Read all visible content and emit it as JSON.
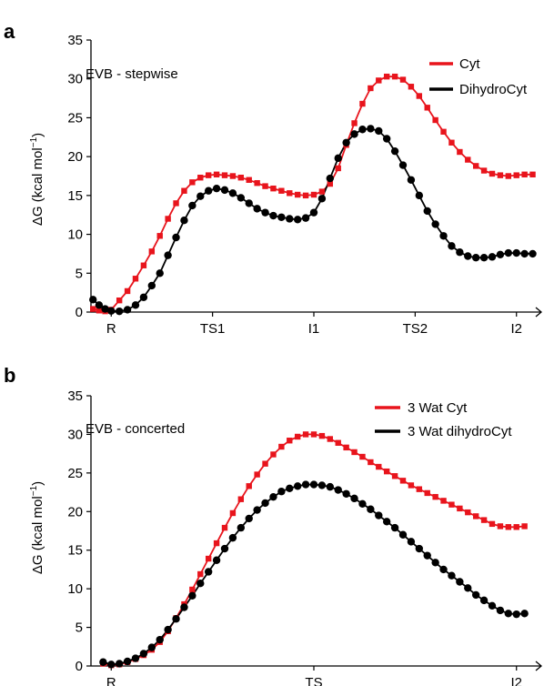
{
  "panels": [
    {
      "label": "a",
      "annotation": "EVB - stepwise"
    },
    {
      "label": "b",
      "annotation": "EVB - concerted"
    }
  ],
  "ylabel_text": "ΔG (kcal mol",
  "ylabel_sup": "−1",
  "ylabel_close": ")",
  "colors": {
    "red": "#e8141c",
    "black": "#000000"
  },
  "chart_data": [
    {
      "type": "line",
      "title": "",
      "annotation": "EVB - stepwise",
      "xlabel": "",
      "ylabel": "ΔG (kcal mol−1)",
      "ylim": [
        0,
        35
      ],
      "yticks": [
        0,
        5,
        10,
        15,
        20,
        25,
        30,
        35
      ],
      "xlim": [
        -0.5,
        10.5
      ],
      "xticks": [
        {
          "x": 0,
          "label": "R"
        },
        {
          "x": 2.5,
          "label": "TS1"
        },
        {
          "x": 5,
          "label": "I1"
        },
        {
          "x": 7.5,
          "label": "TS2"
        },
        {
          "x": 10,
          "label": "I2"
        }
      ],
      "legend_position": "top-right",
      "grid": false,
      "series": [
        {
          "name": "Cyt",
          "color": "#e8141c",
          "marker": "square",
          "x": [
            -0.45,
            -0.3,
            -0.15,
            0,
            0.2,
            0.4,
            0.6,
            0.8,
            1.0,
            1.2,
            1.4,
            1.6,
            1.8,
            2.0,
            2.2,
            2.4,
            2.6,
            2.8,
            3.0,
            3.2,
            3.4,
            3.6,
            3.8,
            4.0,
            4.2,
            4.4,
            4.6,
            4.8,
            5.0,
            5.2,
            5.4,
            5.6,
            5.8,
            6.0,
            6.2,
            6.4,
            6.6,
            6.8,
            7.0,
            7.2,
            7.4,
            7.6,
            7.8,
            8.0,
            8.2,
            8.4,
            8.6,
            8.8,
            9.0,
            9.2,
            9.4,
            9.6,
            9.8,
            10.0,
            10.2,
            10.4
          ],
          "y": [
            0.4,
            0.2,
            0.1,
            0.3,
            1.5,
            2.7,
            4.3,
            6.0,
            7.8,
            9.8,
            12.0,
            14.0,
            15.6,
            16.7,
            17.3,
            17.6,
            17.7,
            17.6,
            17.5,
            17.3,
            17.0,
            16.6,
            16.2,
            15.9,
            15.6,
            15.3,
            15.1,
            15.0,
            15.1,
            15.5,
            16.5,
            18.5,
            21.5,
            24.3,
            26.8,
            28.8,
            29.8,
            30.3,
            30.3,
            29.9,
            29.0,
            27.8,
            26.3,
            24.7,
            23.2,
            21.8,
            20.6,
            19.6,
            18.8,
            18.2,
            17.8,
            17.6,
            17.5,
            17.6,
            17.7,
            17.7
          ]
        },
        {
          "name": "DihydroCyt",
          "color": "#000000",
          "marker": "circle",
          "x": [
            -0.45,
            -0.3,
            -0.15,
            0,
            0.2,
            0.4,
            0.6,
            0.8,
            1.0,
            1.2,
            1.4,
            1.6,
            1.8,
            2.0,
            2.2,
            2.4,
            2.6,
            2.8,
            3.0,
            3.2,
            3.4,
            3.6,
            3.8,
            4.0,
            4.2,
            4.4,
            4.6,
            4.8,
            5.0,
            5.2,
            5.4,
            5.6,
            5.8,
            6.0,
            6.2,
            6.4,
            6.6,
            6.8,
            7.0,
            7.2,
            7.4,
            7.6,
            7.8,
            8.0,
            8.2,
            8.4,
            8.6,
            8.8,
            9.0,
            9.2,
            9.4,
            9.6,
            9.8,
            10.0,
            10.2,
            10.4
          ],
          "y": [
            1.6,
            0.9,
            0.4,
            0.15,
            0.1,
            0.3,
            0.9,
            1.9,
            3.4,
            5.0,
            7.3,
            9.6,
            11.8,
            13.7,
            14.9,
            15.6,
            15.9,
            15.7,
            15.3,
            14.7,
            14.0,
            13.3,
            12.8,
            12.4,
            12.2,
            12.0,
            11.9,
            12.1,
            12.8,
            14.6,
            17.2,
            19.8,
            21.8,
            22.9,
            23.5,
            23.6,
            23.3,
            22.3,
            20.7,
            18.9,
            17.0,
            15.0,
            13.0,
            11.3,
            9.8,
            8.5,
            7.7,
            7.2,
            7.0,
            7.0,
            7.1,
            7.4,
            7.6,
            7.6,
            7.5,
            7.5
          ]
        }
      ]
    },
    {
      "type": "line",
      "title": "",
      "annotation": "EVB - concerted",
      "xlabel": "",
      "ylabel": "ΔG (kcal mol−1)",
      "ylim": [
        0,
        35
      ],
      "yticks": [
        0,
        5,
        10,
        15,
        20,
        25,
        30,
        35
      ],
      "xlim": [
        -0.5,
        10.5
      ],
      "xticks": [
        {
          "x": 0,
          "label": "R"
        },
        {
          "x": 5,
          "label": "TS"
        },
        {
          "x": 10,
          "label": "I2"
        }
      ],
      "legend_position": "top-right",
      "grid": false,
      "series": [
        {
          "name": "3 Wat Cyt",
          "color": "#e8141c",
          "marker": "square",
          "x": [
            -0.2,
            0,
            0.2,
            0.4,
            0.6,
            0.8,
            1.0,
            1.2,
            1.4,
            1.6,
            1.8,
            2.0,
            2.2,
            2.4,
            2.6,
            2.8,
            3.0,
            3.2,
            3.4,
            3.6,
            3.8,
            4.0,
            4.2,
            4.4,
            4.6,
            4.8,
            5.0,
            5.2,
            5.4,
            5.6,
            5.8,
            6.0,
            6.2,
            6.4,
            6.6,
            6.8,
            7.0,
            7.2,
            7.4,
            7.6,
            7.8,
            8.0,
            8.2,
            8.4,
            8.6,
            8.8,
            9.0,
            9.2,
            9.4,
            9.6,
            9.8,
            10.0,
            10.2
          ],
          "y": [
            0.3,
            0.1,
            0.2,
            0.5,
            0.9,
            1.4,
            2.1,
            3.1,
            4.5,
            6.2,
            8.0,
            9.9,
            11.9,
            13.9,
            15.9,
            17.9,
            19.8,
            21.6,
            23.3,
            24.8,
            26.2,
            27.4,
            28.4,
            29.2,
            29.7,
            30.0,
            30.0,
            29.8,
            29.4,
            28.9,
            28.3,
            27.7,
            27.1,
            26.4,
            25.8,
            25.2,
            24.6,
            24.0,
            23.4,
            22.9,
            22.4,
            21.9,
            21.4,
            20.9,
            20.4,
            19.9,
            19.4,
            18.9,
            18.4,
            18.1,
            18.0,
            18.0,
            18.1
          ]
        },
        {
          "name": "3 Wat dihydroCyt",
          "color": "#000000",
          "marker": "circle",
          "x": [
            -0.2,
            0,
            0.2,
            0.4,
            0.6,
            0.8,
            1.0,
            1.2,
            1.4,
            1.6,
            1.8,
            2.0,
            2.2,
            2.4,
            2.6,
            2.8,
            3.0,
            3.2,
            3.4,
            3.6,
            3.8,
            4.0,
            4.2,
            4.4,
            4.6,
            4.8,
            5.0,
            5.2,
            5.4,
            5.6,
            5.8,
            6.0,
            6.2,
            6.4,
            6.6,
            6.8,
            7.0,
            7.2,
            7.4,
            7.6,
            7.8,
            8.0,
            8.2,
            8.4,
            8.6,
            8.8,
            9.0,
            9.2,
            9.4,
            9.6,
            9.8,
            10.0,
            10.2
          ],
          "y": [
            0.5,
            0.2,
            0.3,
            0.6,
            1.0,
            1.6,
            2.4,
            3.4,
            4.7,
            6.1,
            7.6,
            9.1,
            10.7,
            12.2,
            13.7,
            15.2,
            16.6,
            17.9,
            19.1,
            20.2,
            21.1,
            21.9,
            22.6,
            23.0,
            23.3,
            23.5,
            23.5,
            23.4,
            23.2,
            22.8,
            22.3,
            21.7,
            21.0,
            20.3,
            19.5,
            18.7,
            17.9,
            17.0,
            16.1,
            15.2,
            14.3,
            13.4,
            12.5,
            11.7,
            10.9,
            10.1,
            9.2,
            8.5,
            7.8,
            7.2,
            6.8,
            6.7,
            6.8
          ]
        }
      ]
    }
  ]
}
